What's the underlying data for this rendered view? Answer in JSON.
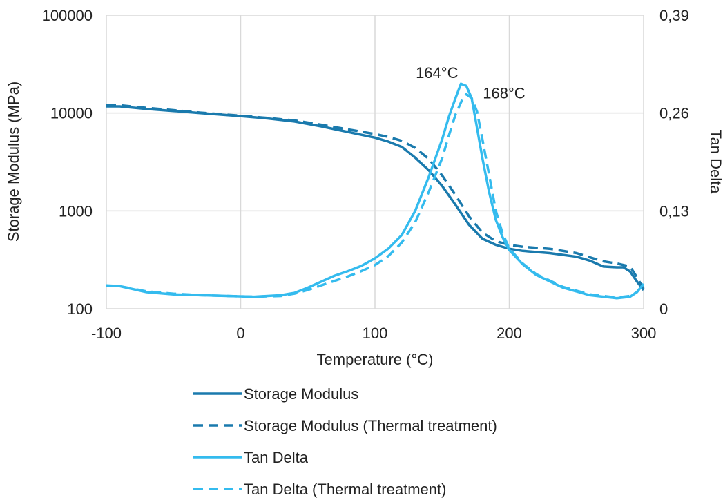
{
  "chart_data": {
    "type": "line",
    "xlabel": "Temperature (°C)",
    "ylabel": "Storage Modulus (MPa)",
    "y2label": "Tan Delta",
    "xlim": [
      -100,
      300
    ],
    "ylim": [
      100,
      100000
    ],
    "y_scale": "log",
    "y2lim": [
      0,
      0.39
    ],
    "grid": true,
    "legend_position": "bottom",
    "x_ticks": [
      "-100",
      "0",
      "100",
      "200",
      "300"
    ],
    "x_tick_values": [
      -100,
      0,
      100,
      200,
      300
    ],
    "y_ticks": [
      "100",
      "1000",
      "10000",
      "100000"
    ],
    "y_tick_values": [
      100,
      1000,
      10000,
      100000
    ],
    "y2_ticks": [
      "0",
      "0,13",
      "0,26",
      "0,39"
    ],
    "y2_tick_values": [
      0,
      0.13,
      0.26,
      0.39
    ],
    "annotations": [
      {
        "text": "164°C",
        "x": 164,
        "y2": 0.299
      },
      {
        "text": "168°C",
        "x": 168,
        "y2": 0.285
      }
    ],
    "series": [
      {
        "name": "Storage Modulus",
        "axis": "left",
        "style": "solid",
        "color": "#1a7aad",
        "x": [
          -100,
          -90,
          -70,
          -50,
          -30,
          0,
          20,
          40,
          60,
          80,
          100,
          110,
          120,
          130,
          140,
          150,
          160,
          170,
          180,
          190,
          200,
          210,
          230,
          250,
          260,
          270,
          280,
          285,
          290,
          295,
          300
        ],
        "y": [
          11700,
          11700,
          11000,
          10500,
          10000,
          9300,
          8800,
          8200,
          7300,
          6400,
          5600,
          5100,
          4500,
          3500,
          2600,
          1800,
          1150,
          720,
          520,
          450,
          410,
          390,
          370,
          340,
          310,
          270,
          265,
          265,
          240,
          190,
          155
        ]
      },
      {
        "name": "Storage Modulus (Thermal treatment)",
        "axis": "left",
        "style": "dashed",
        "color": "#1a7aad",
        "x": [
          -100,
          -90,
          -70,
          -50,
          -30,
          0,
          20,
          40,
          60,
          80,
          100,
          110,
          120,
          130,
          140,
          150,
          160,
          170,
          180,
          190,
          200,
          210,
          230,
          250,
          260,
          270,
          280,
          290,
          295,
          300
        ],
        "y": [
          12000,
          12000,
          11300,
          10700,
          10100,
          9400,
          8900,
          8400,
          7600,
          6800,
          6100,
          5700,
          5200,
          4400,
          3400,
          2300,
          1450,
          880,
          600,
          490,
          450,
          430,
          410,
          370,
          335,
          305,
          290,
          270,
          210,
          160
        ]
      },
      {
        "name": "Tan Delta",
        "axis": "right",
        "style": "solid",
        "color": "#34bbee",
        "x": [
          -100,
          -90,
          -70,
          -50,
          -30,
          -10,
          10,
          30,
          40,
          50,
          60,
          70,
          80,
          90,
          100,
          110,
          120,
          130,
          140,
          150,
          155,
          160,
          164,
          168,
          172,
          175,
          180,
          185,
          190,
          195,
          200,
          210,
          220,
          240,
          260,
          280,
          290,
          295,
          300
        ],
        "y": [
          0.03,
          0.03,
          0.022,
          0.019,
          0.018,
          0.017,
          0.016,
          0.018,
          0.021,
          0.028,
          0.036,
          0.044,
          0.05,
          0.057,
          0.067,
          0.08,
          0.098,
          0.13,
          0.175,
          0.225,
          0.255,
          0.28,
          0.299,
          0.296,
          0.28,
          0.25,
          0.2,
          0.155,
          0.118,
          0.095,
          0.078,
          0.059,
          0.045,
          0.028,
          0.018,
          0.014,
          0.016,
          0.022,
          0.033
        ]
      },
      {
        "name": "Tan Delta (Thermal treatment)",
        "axis": "right",
        "style": "dashed",
        "color": "#34bbee",
        "x": [
          -100,
          -90,
          -70,
          -50,
          -30,
          -10,
          10,
          30,
          40,
          50,
          60,
          70,
          80,
          90,
          100,
          110,
          120,
          130,
          140,
          150,
          155,
          160,
          165,
          168,
          172,
          176,
          180,
          185,
          190,
          195,
          200,
          210,
          220,
          240,
          260,
          280,
          290,
          295,
          300
        ],
        "y": [
          0.031,
          0.03,
          0.023,
          0.02,
          0.018,
          0.017,
          0.016,
          0.017,
          0.02,
          0.025,
          0.031,
          0.037,
          0.043,
          0.05,
          0.058,
          0.07,
          0.088,
          0.115,
          0.155,
          0.2,
          0.23,
          0.258,
          0.278,
          0.285,
          0.28,
          0.262,
          0.225,
          0.178,
          0.13,
          0.1,
          0.08,
          0.06,
          0.046,
          0.029,
          0.019,
          0.015,
          0.017,
          0.022,
          0.033
        ]
      }
    ]
  }
}
